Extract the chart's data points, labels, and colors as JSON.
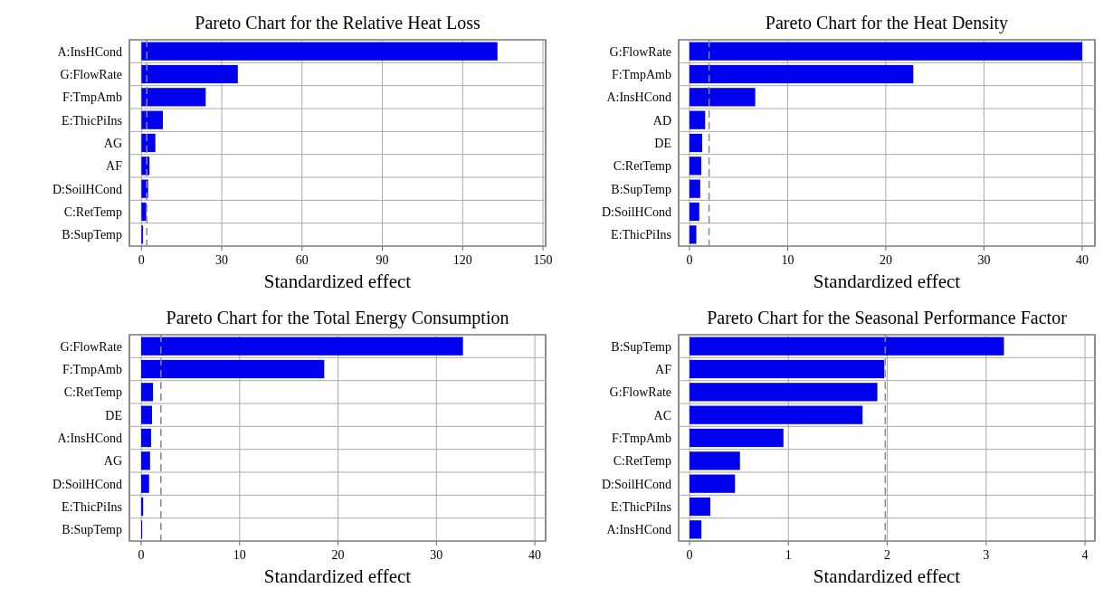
{
  "chart_data": [
    {
      "type": "bar",
      "orientation": "horizontal",
      "title": "Pareto Chart for the Relative Heat Loss",
      "xlabel": "Standardized effect",
      "categories": [
        "A:InsHCond",
        "G:FlowRate",
        "F:TmpAmb",
        "E:ThicPiIns",
        "AG",
        "AF",
        "D:SoilHCond",
        "C:RetTemp",
        "B:SupTemp"
      ],
      "values": [
        133,
        36,
        24,
        8,
        5.2,
        3,
        2.5,
        1.8,
        0.6
      ],
      "color": "#0000ee",
      "xlim": [
        -4.5,
        151
      ],
      "xticks": [
        0,
        30,
        60,
        90,
        120,
        150
      ],
      "grid": true,
      "ref_lines": [
        {
          "axis": "x",
          "value": 2,
          "color": "#888888",
          "line_style": "dashed"
        }
      ]
    },
    {
      "type": "bar",
      "orientation": "horizontal",
      "title": "Pareto Chart for the Heat Density",
      "xlabel": "Standardized effect",
      "categories": [
        "G:FlowRate",
        "F:TmpAmb",
        "A:InsHCond",
        "AD",
        "DE",
        "C:RetTemp",
        "B:SupTemp",
        "D:SoilHCond",
        "E:ThicPiIns"
      ],
      "values": [
        40,
        22.8,
        6.7,
        1.6,
        1.3,
        1.2,
        1.1,
        1.0,
        0.7
      ],
      "color": "#0000ee",
      "xlim": [
        -1.1,
        41.3
      ],
      "xticks": [
        0,
        10,
        20,
        30,
        40
      ],
      "grid": true,
      "ref_lines": [
        {
          "axis": "x",
          "value": 2,
          "color": "#888888",
          "line_style": "dashed"
        }
      ]
    },
    {
      "type": "bar",
      "orientation": "horizontal",
      "title": "Pareto Chart for the Total Energy Consumption",
      "xlabel": "Standardized effect",
      "categories": [
        "G:FlowRate",
        "F:TmpAmb",
        "C:RetTemp",
        "DE",
        "A:InsHCond",
        "AG",
        "D:SoilHCond",
        "E:ThicPiIns",
        "B:SupTemp"
      ],
      "values": [
        32.7,
        18.6,
        1.2,
        1.1,
        1.0,
        0.9,
        0.8,
        0.2,
        0.1
      ],
      "color": "#0000ee",
      "xlim": [
        -1.2,
        41.1
      ],
      "xticks": [
        0,
        10,
        20,
        30,
        40
      ],
      "grid": true,
      "ref_lines": [
        {
          "axis": "x",
          "value": 2,
          "color": "#888888",
          "line_style": "dashed"
        }
      ]
    },
    {
      "type": "bar",
      "orientation": "horizontal",
      "title": "Pareto Chart for the Seasonal Performance Factor",
      "xlabel": "Standardized effect",
      "categories": [
        "B:SupTemp",
        "AF",
        "G:FlowRate",
        "AC",
        "F:TmpAmb",
        "C:RetTemp",
        "D:SoilHCond",
        "E:ThicPiIns",
        "A:InsHCond"
      ],
      "values": [
        3.18,
        1.97,
        1.9,
        1.75,
        0.95,
        0.51,
        0.46,
        0.21,
        0.12
      ],
      "color": "#0000ee",
      "xlim": [
        -0.11,
        4.1
      ],
      "xticks": [
        0,
        1,
        2,
        3,
        4
      ],
      "grid": true,
      "ref_lines": [
        {
          "axis": "x",
          "value": 1.98,
          "color": "#888888",
          "line_style": "dashed"
        }
      ]
    }
  ]
}
